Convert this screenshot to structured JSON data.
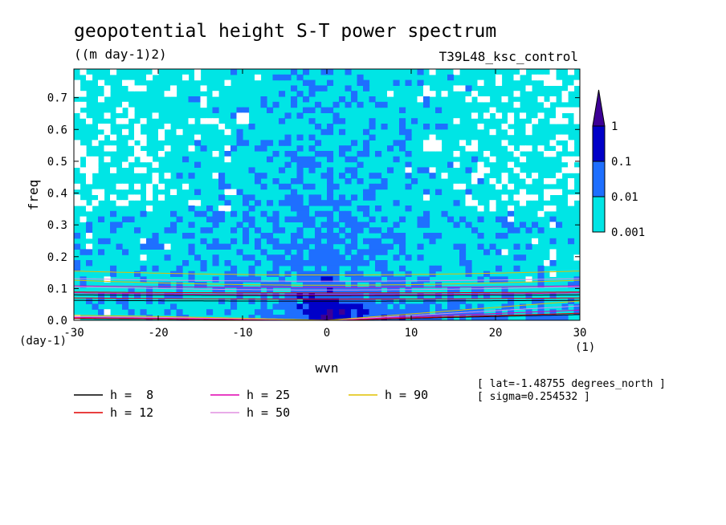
{
  "chart_data": {
    "type": "heatmap",
    "title": "geopotential height S-T power spectrum",
    "subtitle": "((m day-1)2)",
    "experiment": "T39L48_ksc_control",
    "xlabel": "wvn",
    "ylabel": "freq",
    "x_unit": "(1)",
    "y_unit": "(day-1)",
    "xlim": [
      -30,
      30
    ],
    "ylim": [
      0,
      0.79
    ],
    "x_ticks": [
      -30,
      -20,
      -10,
      0,
      10,
      20,
      30
    ],
    "x_tick_labels": [
      "-30",
      "-20",
      "-10",
      "0",
      "10",
      "20",
      "30"
    ],
    "y_ticks": [
      0,
      0.1,
      0.2,
      0.3,
      0.4,
      0.5,
      0.6,
      0.7
    ],
    "y_tick_labels": [
      "0.0",
      "0.1",
      "0.2",
      "0.3",
      "0.4",
      "0.5",
      "0.6",
      "0.7"
    ],
    "contour_levels": [
      0.001,
      0.01,
      0.1,
      1
    ],
    "contour_level_labels": [
      "0.001",
      "0.01",
      "0.1",
      "1"
    ],
    "level_colors": [
      "#ffffff",
      "#00e5e5",
      "#1e6fff",
      "#0000c8",
      "#3c0096"
    ],
    "dispersion_curves": [
      {
        "label": "h =  8",
        "h": 8,
        "color": "#000000"
      },
      {
        "label": "h = 12",
        "h": 12,
        "color": "#e00000"
      },
      {
        "label": "h = 25",
        "h": 25,
        "color": "#e000b0"
      },
      {
        "label": "h = 50",
        "h": 50,
        "color": "#e090e0"
      },
      {
        "label": "h = 90",
        "h": 90,
        "color": "#e0c000"
      }
    ],
    "annotations": [
      "[ lat=-1.48755 degrees_north ]",
      "[ sigma=0.254532 ]"
    ]
  }
}
